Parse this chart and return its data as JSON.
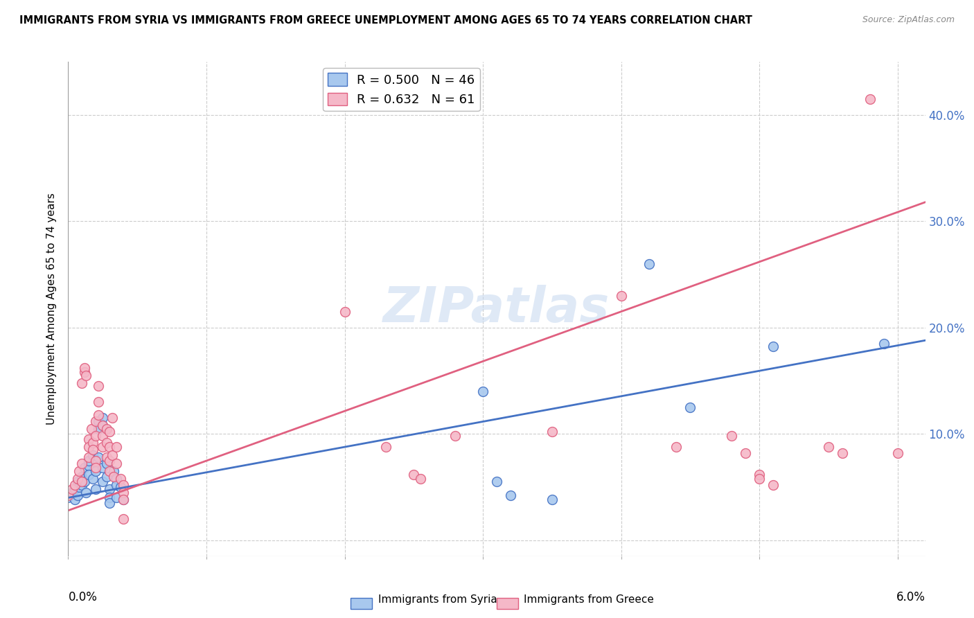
{
  "title": "IMMIGRANTS FROM SYRIA VS IMMIGRANTS FROM GREECE UNEMPLOYMENT AMONG AGES 65 TO 74 YEARS CORRELATION CHART",
  "source": "Source: ZipAtlas.com",
  "ylabel": "Unemployment Among Ages 65 to 74 years",
  "xlim": [
    0.0,
    0.062
  ],
  "ylim": [
    -0.015,
    0.45
  ],
  "yticks": [
    0.0,
    0.1,
    0.2,
    0.3,
    0.4
  ],
  "ytick_labels": [
    "",
    "10.0%",
    "20.0%",
    "30.0%",
    "40.0%"
  ],
  "xticks": [
    0.0,
    0.01,
    0.02,
    0.03,
    0.04,
    0.05,
    0.06
  ],
  "legend_syria_R": "0.500",
  "legend_syria_N": "46",
  "legend_greece_R": "0.632",
  "legend_greece_N": "61",
  "syria_color": "#a8c8ee",
  "greece_color": "#f5b8c8",
  "syria_line_color": "#4472c4",
  "greece_line_color": "#e06080",
  "watermark": "ZIPatlas",
  "syria_scatter": [
    [
      0.0,
      0.04
    ],
    [
      0.0003,
      0.045
    ],
    [
      0.0005,
      0.038
    ],
    [
      0.0005,
      0.048
    ],
    [
      0.0007,
      0.055
    ],
    [
      0.0007,
      0.042
    ],
    [
      0.0008,
      0.05
    ],
    [
      0.001,
      0.06
    ],
    [
      0.001,
      0.052
    ],
    [
      0.001,
      0.058
    ],
    [
      0.0012,
      0.068
    ],
    [
      0.0012,
      0.055
    ],
    [
      0.0013,
      0.045
    ],
    [
      0.0015,
      0.07
    ],
    [
      0.0015,
      0.062
    ],
    [
      0.0015,
      0.075
    ],
    [
      0.0018,
      0.08
    ],
    [
      0.0018,
      0.058
    ],
    [
      0.002,
      0.048
    ],
    [
      0.002,
      0.065
    ],
    [
      0.0022,
      0.112
    ],
    [
      0.0022,
      0.105
    ],
    [
      0.0022,
      0.078
    ],
    [
      0.0025,
      0.115
    ],
    [
      0.0025,
      0.108
    ],
    [
      0.0025,
      0.068
    ],
    [
      0.0025,
      0.055
    ],
    [
      0.0028,
      0.072
    ],
    [
      0.0028,
      0.06
    ],
    [
      0.003,
      0.048
    ],
    [
      0.003,
      0.04
    ],
    [
      0.003,
      0.035
    ],
    [
      0.0033,
      0.065
    ],
    [
      0.0035,
      0.058
    ],
    [
      0.0035,
      0.052
    ],
    [
      0.0035,
      0.04
    ],
    [
      0.0038,
      0.05
    ],
    [
      0.004,
      0.038
    ],
    [
      0.03,
      0.14
    ],
    [
      0.031,
      0.055
    ],
    [
      0.032,
      0.042
    ],
    [
      0.035,
      0.038
    ],
    [
      0.042,
      0.26
    ],
    [
      0.045,
      0.125
    ],
    [
      0.051,
      0.182
    ],
    [
      0.059,
      0.185
    ]
  ],
  "greece_scatter": [
    [
      0.0,
      0.042
    ],
    [
      0.0003,
      0.048
    ],
    [
      0.0005,
      0.052
    ],
    [
      0.0007,
      0.058
    ],
    [
      0.0008,
      0.065
    ],
    [
      0.001,
      0.055
    ],
    [
      0.001,
      0.072
    ],
    [
      0.001,
      0.148
    ],
    [
      0.0012,
      0.158
    ],
    [
      0.0012,
      0.162
    ],
    [
      0.0013,
      0.155
    ],
    [
      0.0015,
      0.095
    ],
    [
      0.0015,
      0.088
    ],
    [
      0.0015,
      0.078
    ],
    [
      0.0017,
      0.105
    ],
    [
      0.0018,
      0.092
    ],
    [
      0.0018,
      0.085
    ],
    [
      0.002,
      0.112
    ],
    [
      0.002,
      0.098
    ],
    [
      0.002,
      0.075
    ],
    [
      0.002,
      0.068
    ],
    [
      0.0022,
      0.145
    ],
    [
      0.0022,
      0.13
    ],
    [
      0.0022,
      0.118
    ],
    [
      0.0025,
      0.108
    ],
    [
      0.0025,
      0.098
    ],
    [
      0.0025,
      0.088
    ],
    [
      0.0028,
      0.105
    ],
    [
      0.0028,
      0.092
    ],
    [
      0.0028,
      0.078
    ],
    [
      0.003,
      0.102
    ],
    [
      0.003,
      0.088
    ],
    [
      0.003,
      0.075
    ],
    [
      0.003,
      0.065
    ],
    [
      0.0032,
      0.115
    ],
    [
      0.0032,
      0.08
    ],
    [
      0.0033,
      0.06
    ],
    [
      0.0035,
      0.088
    ],
    [
      0.0035,
      0.072
    ],
    [
      0.0038,
      0.058
    ],
    [
      0.004,
      0.052
    ],
    [
      0.004,
      0.045
    ],
    [
      0.004,
      0.038
    ],
    [
      0.004,
      0.02
    ],
    [
      0.02,
      0.215
    ],
    [
      0.023,
      0.088
    ],
    [
      0.025,
      0.062
    ],
    [
      0.0255,
      0.058
    ],
    [
      0.028,
      0.098
    ],
    [
      0.035,
      0.102
    ],
    [
      0.04,
      0.23
    ],
    [
      0.044,
      0.088
    ],
    [
      0.048,
      0.098
    ],
    [
      0.049,
      0.082
    ],
    [
      0.05,
      0.062
    ],
    [
      0.05,
      0.058
    ],
    [
      0.051,
      0.052
    ],
    [
      0.055,
      0.088
    ],
    [
      0.056,
      0.082
    ],
    [
      0.058,
      0.415
    ],
    [
      0.06,
      0.082
    ]
  ],
  "syria_trend_x": [
    0.0,
    0.062
  ],
  "syria_trend_y": [
    0.04,
    0.188
  ],
  "greece_trend_x": [
    0.0,
    0.062
  ],
  "greece_trend_y": [
    0.028,
    0.318
  ]
}
